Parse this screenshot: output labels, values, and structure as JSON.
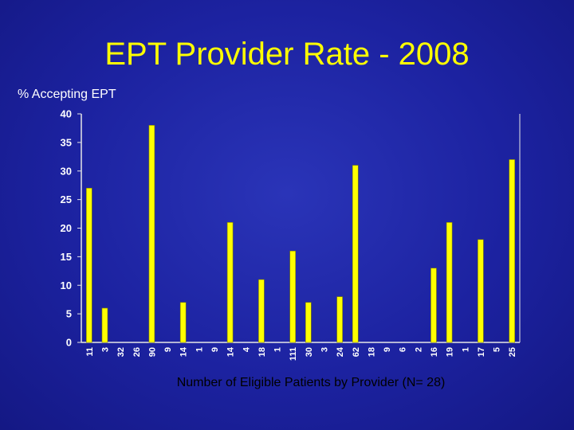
{
  "chart_data": {
    "type": "bar",
    "title": "EPT Provider Rate - 2008",
    "ylabel": "% Accepting EPT",
    "xlabel": "Number of Eligible Patients by Provider (N= 28)",
    "ylim": [
      0,
      40
    ],
    "yticks": [
      0,
      5,
      10,
      15,
      20,
      25,
      30,
      35,
      40
    ],
    "categories": [
      "11",
      "3",
      "32",
      "26",
      "90",
      "9",
      "14",
      "1",
      "9",
      "14",
      "4",
      "18",
      "1",
      "111",
      "30",
      "3",
      "24",
      "62",
      "18",
      "9",
      "6",
      "2",
      "16",
      "19",
      "1",
      "17",
      "5",
      "25"
    ],
    "values": [
      27,
      6,
      0,
      0,
      38,
      0,
      7,
      0,
      0,
      21,
      0,
      11,
      0,
      16,
      7,
      0,
      8,
      31,
      0,
      0,
      0,
      0,
      13,
      21,
      0,
      18,
      0,
      32
    ],
    "grid": false,
    "legend": "none",
    "colors": {
      "bar": "#ffff00",
      "bar_edge": "#808000",
      "axis": "#e6e6e6",
      "tick_label": "#ffffff",
      "title": "#ffff00"
    }
  }
}
